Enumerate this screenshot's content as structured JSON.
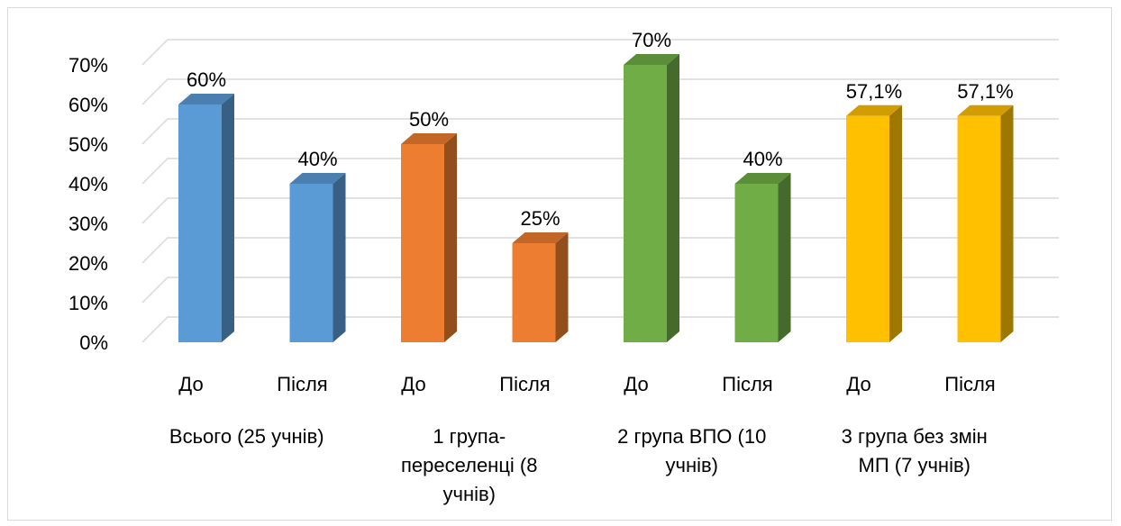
{
  "chart_data": {
    "type": "bar",
    "style": "3d-column",
    "ylim": [
      0,
      70
    ],
    "yticks": [
      "0%",
      "10%",
      "20%",
      "30%",
      "40%",
      "50%",
      "60%",
      "70%"
    ],
    "grid": true,
    "legend": "none",
    "groups": [
      {
        "label_lines": [
          "Всього (25 учнів)"
        ],
        "color": "#5b9bd5",
        "bars": [
          {
            "category": "До",
            "value": 60,
            "label": "60%"
          },
          {
            "category": "Після",
            "value": 40,
            "label": "40%"
          }
        ]
      },
      {
        "label_lines": [
          "1 група-",
          "переселенці (8",
          "учнів)"
        ],
        "color": "#ed7d31",
        "bars": [
          {
            "category": "До",
            "value": 50,
            "label": "50%"
          },
          {
            "category": "Після",
            "value": 25,
            "label": "25%"
          }
        ]
      },
      {
        "label_lines": [
          "2 група ВПО (10",
          "учнів)"
        ],
        "color": "#70ad47",
        "bars": [
          {
            "category": "До",
            "value": 70,
            "label": "70%"
          },
          {
            "category": "Після",
            "value": 40,
            "label": "40%"
          }
        ]
      },
      {
        "label_lines": [
          "3 група без змін",
          "МП (7 учнів)"
        ],
        "color": "#ffc000",
        "bars": [
          {
            "category": "До",
            "value": 57.1,
            "label": "57,1%"
          },
          {
            "category": "Після",
            "value": 57.1,
            "label": "57,1%"
          }
        ]
      }
    ]
  }
}
